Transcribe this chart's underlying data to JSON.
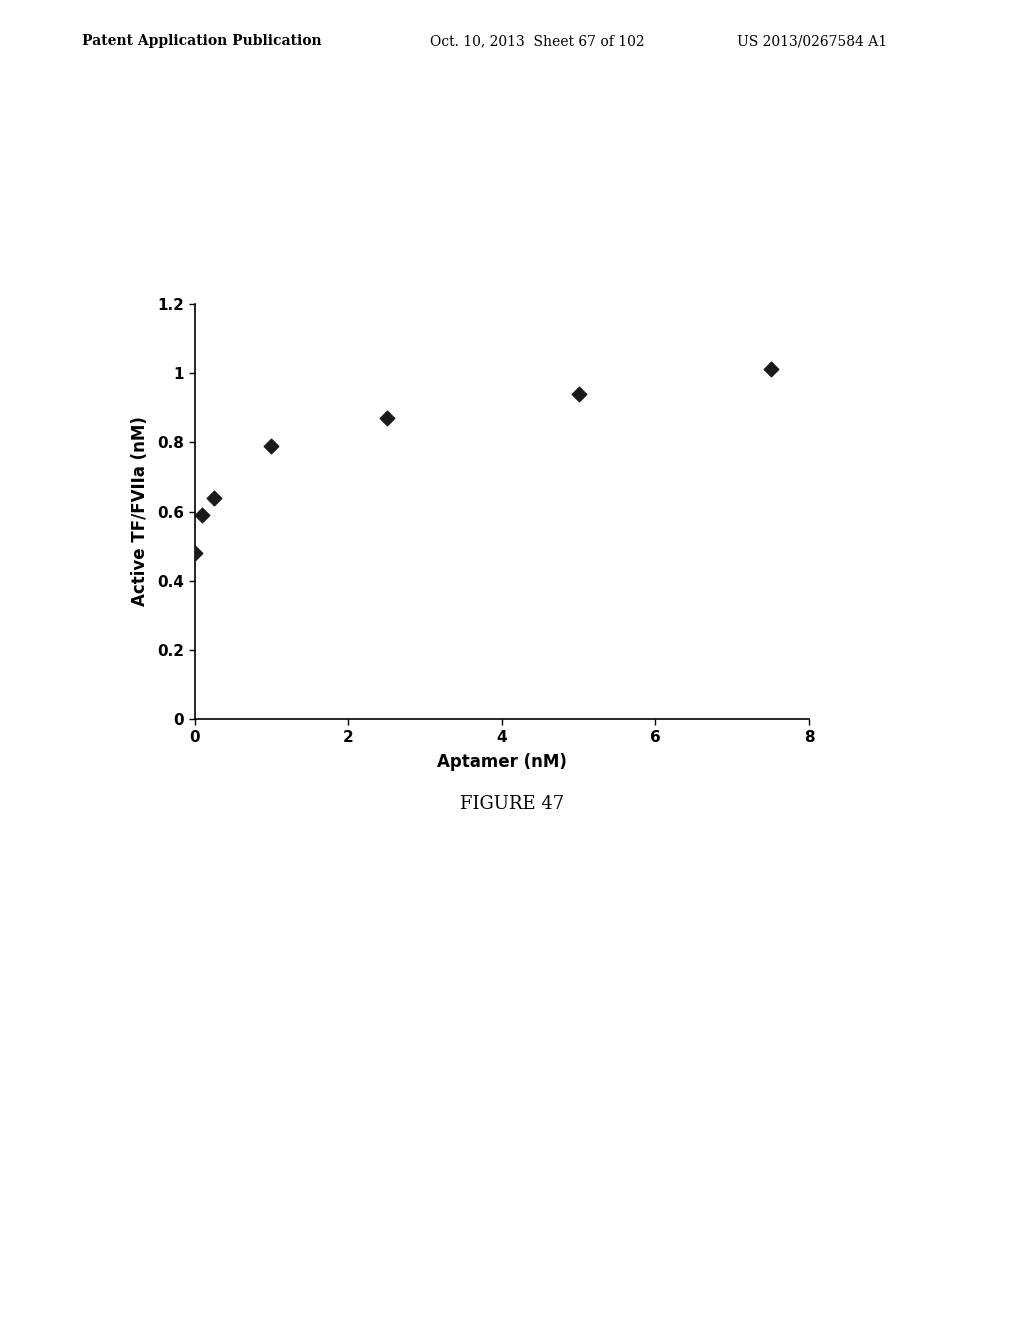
{
  "x_data": [
    0.0,
    0.1,
    0.25,
    1.0,
    2.5,
    5.0,
    7.5
  ],
  "y_data": [
    0.48,
    0.59,
    0.64,
    0.79,
    0.87,
    0.94,
    1.01
  ],
  "xlabel": "Aptamer (nM)",
  "ylabel": "Active TF/FVIIa (nM)",
  "figure_label": "FIGURE 47",
  "xlim": [
    0,
    8
  ],
  "ylim": [
    0,
    1.2
  ],
  "xticks": [
    0,
    2,
    4,
    6,
    8
  ],
  "yticks": [
    0,
    0.2,
    0.4,
    0.6,
    0.8,
    1.0,
    1.2
  ],
  "marker_color": "#1a1a1a",
  "marker_size": 55,
  "bg_color": "#ffffff",
  "header_left": "Patent Application Publication",
  "header_mid": "Oct. 10, 2013  Sheet 67 of 102",
  "header_right": "US 2013/0267584 A1",
  "xlabel_fontsize": 12,
  "ylabel_fontsize": 12,
  "tick_fontsize": 11,
  "figure_label_fontsize": 13,
  "header_fontsize": 10
}
